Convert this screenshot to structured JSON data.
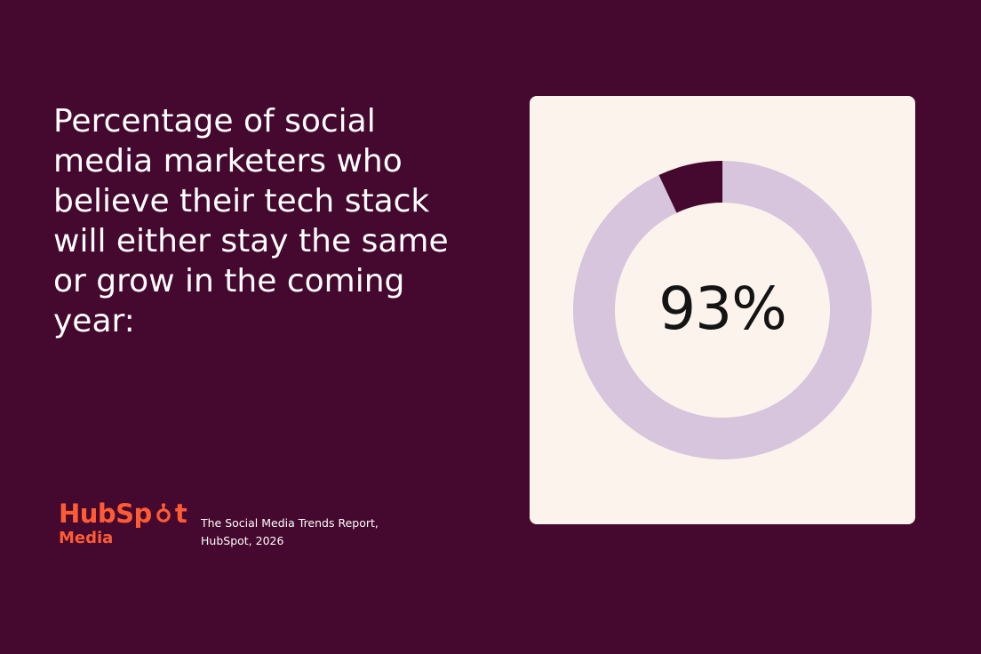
{
  "headline": "Percentage of social media marketers who believe their tech stack will either stay the same or grow in the coming year:",
  "brand": {
    "logo_word_start": "HubSp",
    "logo_word_end": "t",
    "logo_sub": "Media",
    "source_line1": "The Social Media Trends Report,",
    "source_line2": "HubSpot, 2026"
  },
  "colors": {
    "background": "#45082e",
    "card": "#fcf3ec",
    "ring_main": "#d6c5dd",
    "ring_remainder": "#45082e",
    "brand_orange": "#ff5c35"
  },
  "chart_data": {
    "type": "pie",
    "variant": "donut",
    "center_label": "93%",
    "values": [
      93,
      7
    ],
    "slice_colors": [
      "#d6c5dd",
      "#45082e"
    ]
  }
}
